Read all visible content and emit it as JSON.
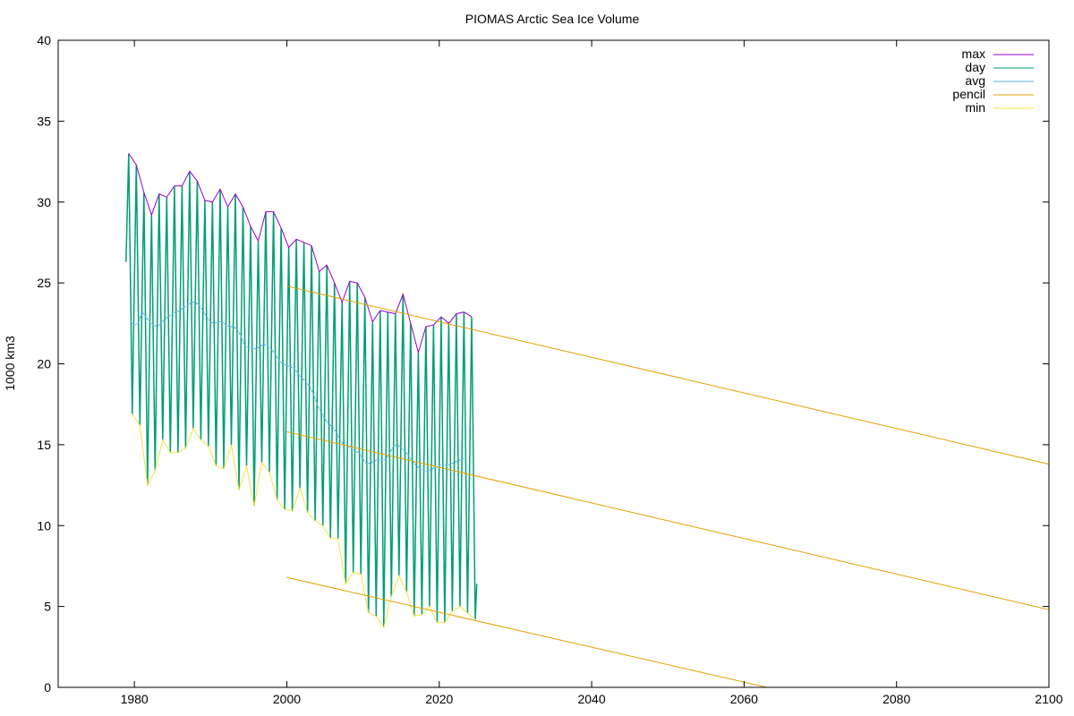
{
  "chart_data": {
    "type": "line",
    "title": "PIOMAS Arctic Sea Ice Volume",
    "xlabel": "",
    "ylabel": "1000 km3",
    "xlim": [
      1970,
      2100
    ],
    "ylim": [
      0,
      40
    ],
    "xticks": [
      1980,
      2000,
      2020,
      2040,
      2060,
      2080,
      2100
    ],
    "yticks": [
      0,
      5,
      10,
      15,
      20,
      25,
      30,
      35,
      40
    ],
    "grid": false,
    "legend_position": "top-right",
    "series": [
      {
        "name": "max",
        "color": "#9400d3",
        "years": [
          1979,
          1980,
          1981,
          1982,
          1983,
          1984,
          1985,
          1986,
          1987,
          1988,
          1989,
          1990,
          1991,
          1992,
          1993,
          1994,
          1995,
          1996,
          1997,
          1998,
          1999,
          2000,
          2001,
          2002,
          2003,
          2004,
          2005,
          2006,
          2007,
          2008,
          2009,
          2010,
          2011,
          2012,
          2013,
          2014,
          2015,
          2016,
          2017,
          2018,
          2019,
          2020,
          2021,
          2022,
          2023,
          2024
        ],
        "values": [
          33.0,
          32.3,
          30.6,
          29.2,
          30.5,
          30.3,
          31.0,
          31.0,
          31.9,
          31.3,
          30.1,
          30.0,
          30.8,
          29.7,
          30.5,
          29.7,
          28.5,
          27.6,
          29.4,
          29.4,
          28.4,
          27.2,
          27.7,
          27.5,
          27.3,
          25.7,
          26.1,
          25.0,
          23.8,
          25.1,
          25.0,
          24.1,
          22.6,
          23.3,
          23.2,
          23.1,
          24.3,
          22.5,
          20.7,
          22.3,
          22.4,
          22.9,
          22.5,
          23.1,
          23.2,
          22.9
        ]
      },
      {
        "name": "day",
        "color": "#009e73",
        "min_day_offset": 0.72,
        "max_day_offset": 0.3
      },
      {
        "name": "avg",
        "color": "#56b4e9",
        "x": [
          1979.5,
          1980.0,
          1980.5,
          1981.0,
          1981.5,
          1982.0,
          1982.5,
          1983.0,
          1983.5,
          1984.0,
          1984.5,
          1985.0,
          1985.5,
          1986.0,
          1986.5,
          1987.0,
          1987.5,
          1988.0,
          1988.5,
          1989.0,
          1989.5,
          1990.0,
          1990.5,
          1991.0,
          1991.5,
          1992.0,
          1992.5,
          1993.0,
          1993.5,
          1994.0,
          1994.5,
          1995.0,
          1995.5,
          1996.0,
          1996.5,
          1997.0,
          1997.5,
          1998.0,
          1998.5,
          1999.0,
          1999.5,
          2000.0,
          2000.5,
          2001.0,
          2001.5,
          2002.0,
          2002.5,
          2003.0,
          2003.5,
          2004.0,
          2004.5,
          2005.0,
          2005.5,
          2006.0,
          2006.5,
          2007.0,
          2007.5,
          2008.0,
          2008.5,
          2009.0,
          2009.5,
          2010.0,
          2010.5,
          2011.0,
          2011.5,
          2012.0,
          2012.5,
          2013.0,
          2013.5,
          2014.0,
          2014.5,
          2015.0,
          2015.5,
          2016.0,
          2016.5,
          2017.0,
          2017.5,
          2018.0,
          2018.5,
          2019.0,
          2019.5,
          2020.0,
          2020.5,
          2021.0,
          2021.5,
          2022.0,
          2022.5,
          2023.0,
          2023.5
        ],
        "values": [
          22.6,
          22.4,
          22.5,
          23.2,
          22.9,
          22.6,
          22.4,
          22.3,
          22.5,
          22.8,
          22.9,
          23.1,
          23.2,
          23.3,
          23.5,
          23.6,
          23.8,
          23.8,
          23.6,
          23.3,
          22.9,
          22.6,
          22.5,
          22.6,
          22.6,
          22.4,
          22.3,
          22.3,
          22.1,
          21.7,
          21.1,
          21.0,
          21.0,
          20.9,
          21.1,
          21.2,
          21.1,
          20.9,
          20.6,
          20.2,
          20.0,
          19.9,
          19.8,
          19.7,
          19.4,
          19.1,
          18.9,
          18.6,
          18.1,
          17.5,
          17.0,
          16.6,
          16.3,
          16.1,
          15.8,
          15.3,
          15.0,
          14.9,
          14.8,
          14.6,
          14.5,
          14.1,
          13.8,
          13.9,
          14.0,
          14.1,
          14.0,
          14.1,
          14.5,
          14.9,
          15.0,
          14.8,
          14.6,
          14.3,
          14.0,
          13.7,
          13.5,
          13.4,
          13.3,
          13.5,
          13.6,
          13.7,
          13.8,
          13.7,
          13.8,
          13.9,
          14.0,
          14.1,
          14.2
        ]
      },
      {
        "name": "pencil",
        "color": "#e69f00",
        "lines": [
          {
            "x": [
              2000,
              2100
            ],
            "y": [
              24.8,
              13.8
            ]
          },
          {
            "x": [
              2000,
              2100
            ],
            "y": [
              15.8,
              4.8
            ]
          },
          {
            "x": [
              2000,
              2063
            ],
            "y": [
              6.8,
              0.0
            ]
          }
        ]
      },
      {
        "name": "min",
        "color": "#f0e442",
        "years": [
          1979,
          1980,
          1981,
          1982,
          1983,
          1984,
          1985,
          1986,
          1987,
          1988,
          1989,
          1990,
          1991,
          1992,
          1993,
          1994,
          1995,
          1996,
          1997,
          1998,
          1999,
          2000,
          2001,
          2002,
          2003,
          2004,
          2005,
          2006,
          2007,
          2008,
          2009,
          2010,
          2011,
          2012,
          2013,
          2014,
          2015,
          2016,
          2017,
          2018,
          2019,
          2020,
          2021,
          2022,
          2023,
          2024
        ],
        "values": [
          16.9,
          16.2,
          12.5,
          13.4,
          15.3,
          14.5,
          14.5,
          14.8,
          16.0,
          15.3,
          14.9,
          13.7,
          13.5,
          15.0,
          12.2,
          13.7,
          11.2,
          13.9,
          13.3,
          11.6,
          11.0,
          10.9,
          12.3,
          10.8,
          10.3,
          10.0,
          9.2,
          9.2,
          6.4,
          7.1,
          7.0,
          4.6,
          4.4,
          3.7,
          5.6,
          6.9,
          5.9,
          4.4,
          4.5,
          5.0,
          4.0,
          4.0,
          4.7,
          5.0,
          4.6,
          4.2
        ]
      }
    ]
  }
}
